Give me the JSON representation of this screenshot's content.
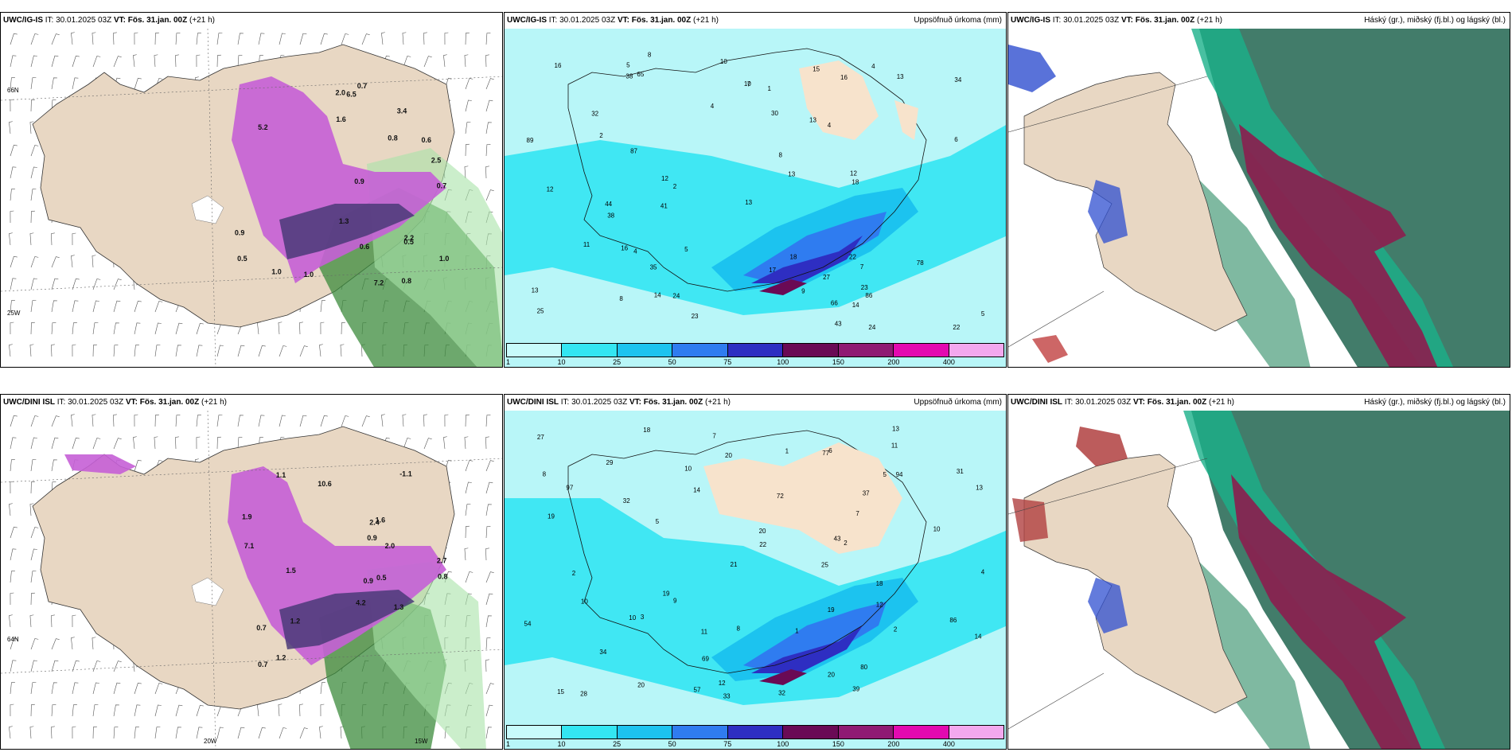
{
  "panels": {
    "r1c1": {
      "model": "UWC/IG-IS",
      "it_label": "IT:",
      "it": "30.01.2025 03Z",
      "vt_label": "VT:",
      "vt": "Fös. 31.jan. 00Z",
      "lead": "(+21 h)",
      "right": ""
    },
    "r1c2": {
      "model": "UWC/IG-IS",
      "it_label": "IT:",
      "it": "30.01.2025 03Z",
      "vt_label": "VT:",
      "vt": "Fös. 31.jan. 00Z",
      "lead": "(+21 h)",
      "right": "Uppsöfnuð úrkoma (mm)"
    },
    "r1c3": {
      "model": "UWC/IG-IS",
      "it_label": "IT:",
      "it": "30.01.2025 03Z",
      "vt_label": "VT:",
      "vt": "Fös. 31.jan. 00Z",
      "lead": "(+21 h)",
      "right": "Háský (gr.), miðský (fj.bl.) og lágský (bl.)"
    },
    "r2c1": {
      "model": "UWC/DINI ISL",
      "it_label": "IT:",
      "it": "30.01.2025 03Z",
      "vt_label": "VT:",
      "vt": "Fös. 31.jan. 00Z",
      "lead": "(+21 h)",
      "right": ""
    },
    "r2c2": {
      "model": "UWC/DINI ISL",
      "it_label": "IT:",
      "it": "30.01.2025 03Z",
      "vt_label": "VT:",
      "vt": "Fös. 31.jan. 00Z",
      "lead": "(+21 h)",
      "right": "Uppsöfnuð úrkoma (mm)"
    },
    "r2c3": {
      "model": "UWC/DINI ISL",
      "it_label": "IT:",
      "it": "30.01.2025 03Z",
      "vt_label": "VT:",
      "vt": "Fös. 31.jan. 00Z",
      "lead": "(+21 h)",
      "right": "Háský (gr.), miðský (fj.bl.) og lágský (bl.)"
    }
  },
  "precip_colorbar": {
    "ticks": [
      "1",
      "10",
      "25",
      "50",
      "75",
      "100",
      "150",
      "200",
      "400"
    ],
    "colors": [
      "#c8fbfb",
      "#33e6f2",
      "#1cc3ef",
      "#2f7cf0",
      "#2e2ec2",
      "#6a0a55",
      "#8f1a73",
      "#e30ab0",
      "#f3a8ee"
    ]
  },
  "map_labels": {
    "lon_20w": "20W",
    "lon_15w": "15W",
    "lon_25w": "25W",
    "lat_66n": "66N",
    "lat_64n": "64N"
  },
  "precip_values_r1": [
    {
      "v": "4"
    },
    {
      "v": "5"
    },
    {
      "v": "7"
    },
    {
      "v": "4"
    },
    {
      "v": "2"
    },
    {
      "v": "5"
    },
    {
      "v": "7"
    },
    {
      "v": "8"
    },
    {
      "v": "10"
    },
    {
      "v": "16"
    },
    {
      "v": "16"
    },
    {
      "v": "12"
    },
    {
      "v": "13"
    },
    {
      "v": "6"
    },
    {
      "v": "8"
    },
    {
      "v": "13"
    },
    {
      "v": "14"
    },
    {
      "v": "8"
    },
    {
      "v": "34"
    },
    {
      "v": "16"
    },
    {
      "v": "17"
    },
    {
      "v": "14"
    },
    {
      "v": "13"
    },
    {
      "v": "43"
    },
    {
      "v": "32"
    },
    {
      "v": "35"
    },
    {
      "v": "25"
    },
    {
      "v": "13"
    },
    {
      "v": "23"
    },
    {
      "v": "22"
    },
    {
      "v": "24"
    },
    {
      "v": "38"
    },
    {
      "v": "18"
    },
    {
      "v": "23"
    },
    {
      "v": "38"
    },
    {
      "v": "22"
    },
    {
      "v": "11"
    },
    {
      "v": "18"
    },
    {
      "v": "65"
    },
    {
      "v": "78"
    },
    {
      "v": "86"
    },
    {
      "v": "66"
    },
    {
      "v": "87"
    },
    {
      "v": "89"
    },
    {
      "v": "12"
    },
    {
      "v": "9"
    },
    {
      "v": "12"
    },
    {
      "v": "10"
    },
    {
      "v": "41"
    },
    {
      "v": "44"
    },
    {
      "v": "30"
    },
    {
      "v": "27"
    },
    {
      "v": "24"
    },
    {
      "v": "13"
    },
    {
      "v": "5"
    },
    {
      "v": "4"
    },
    {
      "v": "15"
    },
    {
      "v": "4"
    },
    {
      "v": "1"
    },
    {
      "v": "2"
    }
  ],
  "precip_values_r2": [
    {
      "v": "11"
    },
    {
      "v": "10"
    },
    {
      "v": "7"
    },
    {
      "v": "9"
    },
    {
      "v": "5"
    },
    {
      "v": "2"
    },
    {
      "v": "1"
    },
    {
      "v": "4"
    },
    {
      "v": "18"
    },
    {
      "v": "20"
    },
    {
      "v": "13"
    },
    {
      "v": "31"
    },
    {
      "v": "12"
    },
    {
      "v": "8"
    },
    {
      "v": "20"
    },
    {
      "v": "19"
    },
    {
      "v": "19"
    },
    {
      "v": "18"
    },
    {
      "v": "32"
    },
    {
      "v": "34"
    },
    {
      "v": "15"
    },
    {
      "v": "20"
    },
    {
      "v": "39"
    },
    {
      "v": "33"
    },
    {
      "v": "25"
    },
    {
      "v": "27"
    },
    {
      "v": "43"
    },
    {
      "v": "22"
    },
    {
      "v": "21"
    },
    {
      "v": "10"
    },
    {
      "v": "14"
    },
    {
      "v": "19"
    },
    {
      "v": "28"
    },
    {
      "v": "72"
    },
    {
      "v": "86"
    },
    {
      "v": "54"
    },
    {
      "v": "69"
    },
    {
      "v": "77"
    },
    {
      "v": "97"
    },
    {
      "v": "32"
    },
    {
      "v": "94"
    },
    {
      "v": "80"
    },
    {
      "v": "57"
    },
    {
      "v": "37"
    },
    {
      "v": "20"
    },
    {
      "v": "29"
    },
    {
      "v": "12"
    },
    {
      "v": "14"
    },
    {
      "v": "13"
    },
    {
      "v": "10"
    },
    {
      "v": "3"
    },
    {
      "v": "2"
    },
    {
      "v": "8"
    },
    {
      "v": "7"
    },
    {
      "v": "10"
    },
    {
      "v": "11"
    },
    {
      "v": "5"
    },
    {
      "v": "6"
    },
    {
      "v": "1"
    },
    {
      "v": "2"
    }
  ],
  "snow_values_r1": [
    "1.3",
    "0.5",
    "0.9",
    "1.6",
    "2.2",
    "2.5",
    "5.2",
    "7.2",
    "2.0",
    "3.4",
    "1.0",
    "0.6",
    "0.8",
    "0.9",
    "0.7",
    "1.0",
    "1.0",
    "0.8",
    "0.7",
    "0.5",
    "6.5",
    "0.6"
  ],
  "snow_values_r2": [
    "-1.1",
    "2.7",
    "0.5",
    "1.6",
    "1.2",
    "1.5",
    "1.1",
    "2.0",
    "1.9",
    "1.3",
    "4.2",
    "10.6",
    "0.9",
    "1.2",
    "0.9",
    "0.7",
    "0.8",
    "7.1",
    "2.4",
    "0.7"
  ]
}
